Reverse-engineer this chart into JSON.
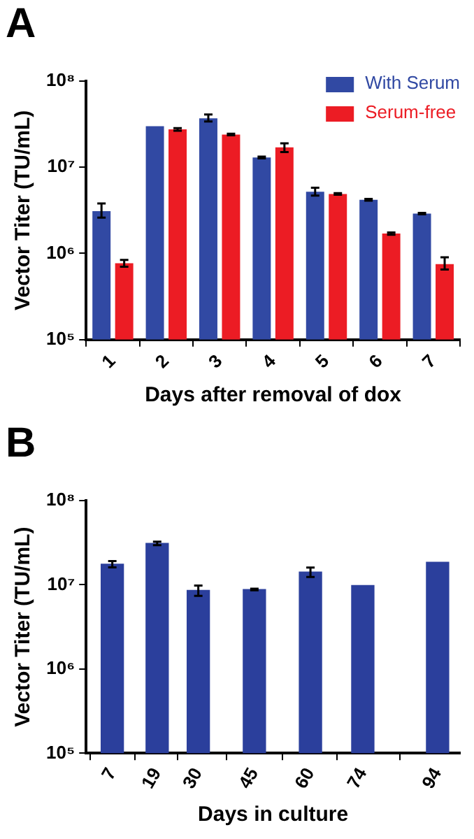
{
  "chart_data": [
    {
      "type": "bar",
      "title": "A",
      "xlabel": "Days after removal of dox",
      "ylabel": "Vector Titer (TU/mL)",
      "categories": [
        "1",
        "2",
        "3",
        "4",
        "5",
        "6",
        "7"
      ],
      "series": [
        {
          "name": "With Serum",
          "color": "#3149a3",
          "values": [
            3100000,
            30000000,
            37000000,
            13000000,
            5200000,
            4200000,
            2900000
          ],
          "errors": [
            [
              2600000,
              3800000
            ],
            null,
            [
              34000000,
              41000000
            ],
            [
              12700000,
              13300000
            ],
            [
              4700000,
              5800000
            ],
            [
              4100000,
              4300000
            ],
            [
              2850000,
              2950000
            ]
          ]
        },
        {
          "name": "Serum-free",
          "color": "#ec1c24",
          "values": [
            770000,
            27500000,
            24000000,
            17000000,
            4900000,
            1700000,
            750000
          ],
          "errors": [
            [
              700000,
              840000
            ],
            [
              26500000,
              28500000
            ],
            [
              23500000,
              24500000
            ],
            [
              15000000,
              19000000
            ],
            [
              4800000,
              5000000
            ],
            [
              1650000,
              1750000
            ],
            [
              650000,
              900000
            ]
          ]
        }
      ],
      "log": "y",
      "ylim": [
        100000,
        100000000
      ],
      "yticks": [
        {
          "value": 100000,
          "label": "10⁵"
        },
        {
          "value": 1000000,
          "label": "10⁶"
        },
        {
          "value": 10000000,
          "label": "10⁷"
        },
        {
          "value": 100000000,
          "label": "10⁸"
        }
      ],
      "grid": false,
      "legend": "top right"
    },
    {
      "type": "bar",
      "title": "B",
      "xlabel": "Days in culture",
      "ylabel": "Vector Titer (TU/mL)",
      "x": [
        7,
        19,
        30,
        45,
        60,
        74,
        94
      ],
      "xlim": [
        0,
        100
      ],
      "xticks": [
        7,
        19,
        30,
        45,
        60,
        74,
        94
      ],
      "values": [
        17600000,
        31000000,
        8600000,
        8800000,
        14200000,
        9800000,
        18500000
      ],
      "errors": [
        1500000,
        1500000,
        1200000,
        200000,
        1800000,
        null,
        null
      ],
      "color": "#2b3f9c",
      "log": "y",
      "ylim": [
        100000,
        100000000
      ],
      "yticks": [
        {
          "value": 100000,
          "label": "10⁵"
        },
        {
          "value": 1000000,
          "label": "10⁶"
        },
        {
          "value": 10000000,
          "label": "10⁷"
        },
        {
          "value": 100000000,
          "label": "10⁸"
        }
      ],
      "grid": false,
      "legend": false
    }
  ]
}
